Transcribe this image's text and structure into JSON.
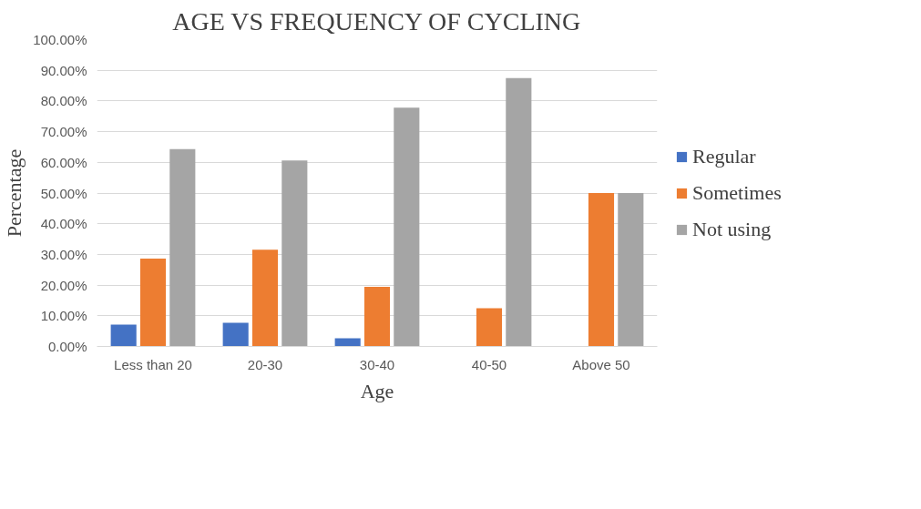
{
  "chart_data": {
    "type": "bar",
    "title": "AGE VS FREQUENCY OF CYCLING",
    "xlabel": "Age",
    "ylabel": "Percentage",
    "categories": [
      "Less than 20",
      "20-30",
      "30-40",
      "40-50",
      "Above 50"
    ],
    "series": [
      {
        "name": "Regular",
        "color": "#4472c4",
        "values": [
          7.1,
          7.7,
          2.7,
          0,
          0
        ]
      },
      {
        "name": "Sometimes",
        "color": "#ed7d31",
        "values": [
          28.6,
          31.5,
          19.4,
          12.5,
          50
        ]
      },
      {
        "name": "Not using",
        "color": "#a5a5a5",
        "values": [
          64.3,
          60.6,
          77.8,
          87.5,
          50
        ]
      }
    ],
    "ylim": [
      0,
      100
    ],
    "yticks": [
      {
        "value": 0,
        "label": "0.00%"
      },
      {
        "value": 10,
        "label": "10.00%"
      },
      {
        "value": 20,
        "label": "20.00%"
      },
      {
        "value": 30,
        "label": "30.00%"
      },
      {
        "value": 40,
        "label": "40.00%"
      },
      {
        "value": 50,
        "label": "50.00%"
      },
      {
        "value": 60,
        "label": "60.00%"
      },
      {
        "value": 70,
        "label": "70.00%"
      },
      {
        "value": 80,
        "label": "80.00%"
      },
      {
        "value": 90,
        "label": "90.00%"
      },
      {
        "value": 100,
        "label": "100.00%"
      }
    ],
    "grid": "y",
    "legend": "right"
  }
}
